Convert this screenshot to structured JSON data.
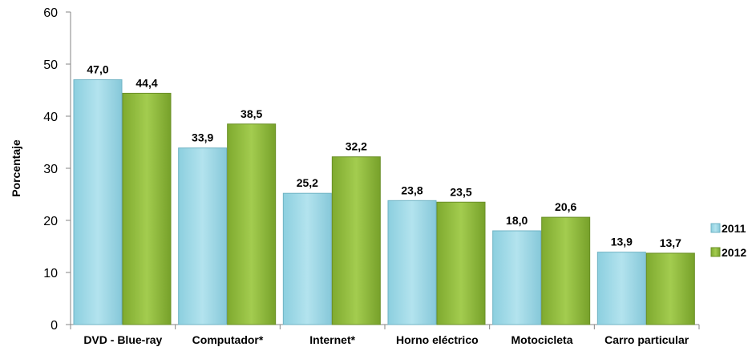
{
  "chart_data": {
    "type": "bar",
    "categories": [
      "DVD - Blue-ray",
      "Computador*",
      "Internet*",
      "Horno eléctrico",
      "Motocicleta",
      "Carro particular"
    ],
    "series": [
      {
        "name": "2011",
        "values": [
          47.0,
          33.9,
          25.2,
          23.8,
          18.0,
          13.9
        ],
        "labels": [
          "47,0",
          "33,9",
          "25,2",
          "23,8",
          "18,0",
          "13,9"
        ]
      },
      {
        "name": "2012",
        "values": [
          44.4,
          38.5,
          32.2,
          23.5,
          20.6,
          13.7
        ],
        "labels": [
          "44,4",
          "38,5",
          "32,2",
          "23,5",
          "20,6",
          "13,7"
        ]
      }
    ],
    "ylabel": "Porcentaje",
    "xlabel": "",
    "ylim": [
      0,
      60
    ],
    "yticks": [
      0,
      10,
      20,
      30,
      40,
      50,
      60
    ],
    "grid": false,
    "legend": "right",
    "colors": {
      "2011": "#9dd6e3",
      "2012": "#8fb83d"
    }
  }
}
